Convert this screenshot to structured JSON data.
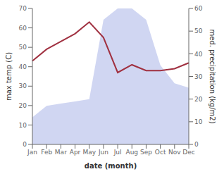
{
  "chart_data": {
    "type": "line",
    "xlabel": "date (month)",
    "ylabel": "max temp (C)",
    "y2label": "med. precipitation (kg/m2)",
    "categories": [
      "Jan",
      "Feb",
      "Mar",
      "Apr",
      "May",
      "Jun",
      "Jul",
      "Aug",
      "Sep",
      "Oct",
      "Nov",
      "Dec"
    ],
    "series": [
      {
        "type": "area",
        "color": "#aab4e8",
        "axis": "y2",
        "values": [
          12,
          17,
          18,
          19,
          20,
          55,
          60,
          60,
          55,
          35,
          27,
          25
        ]
      },
      {
        "type": "line",
        "color": "#a03040",
        "values": [
          43,
          49,
          53,
          57,
          63,
          55,
          37,
          41,
          38,
          38,
          39,
          42
        ]
      }
    ],
    "ylim": [
      0,
      70
    ],
    "yticks": [
      0,
      10,
      20,
      30,
      40,
      50,
      60,
      70
    ],
    "y2lim": [
      0,
      60
    ],
    "y2ticks": [
      0,
      10,
      20,
      30,
      40,
      50,
      60
    ],
    "grid": false
  }
}
